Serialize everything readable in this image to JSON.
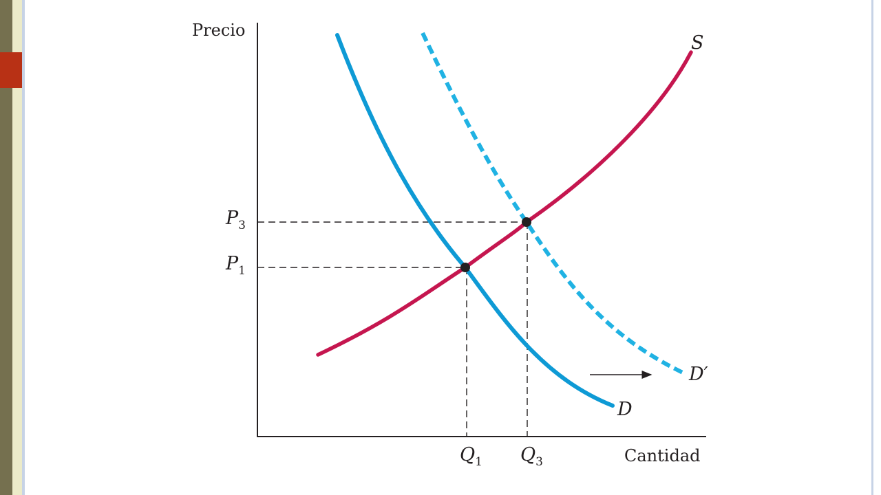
{
  "slide": {
    "accent_color": "#b83115",
    "frame_colors": {
      "dark": "#75704f",
      "cream": "#ecebc9",
      "border": "#c7d3e6"
    }
  },
  "diagram": {
    "axes": {
      "y_label": "Precio",
      "x_label": "Cantidad"
    },
    "curves": {
      "supply": {
        "label": "S",
        "color": "#c5164f"
      },
      "demand": {
        "label": "D",
        "color": "#0e9ad5"
      },
      "demand_shifted": {
        "label": "D′",
        "color": "#20b2e3",
        "style": "dashed"
      }
    },
    "price_ticks": [
      {
        "var": "P",
        "sub": "3"
      },
      {
        "var": "P",
        "sub": "1"
      }
    ],
    "quantity_ticks": [
      {
        "var": "Q",
        "sub": "1"
      },
      {
        "var": "Q",
        "sub": "3"
      }
    ],
    "shift_arrow": {
      "direction": "right"
    }
  }
}
